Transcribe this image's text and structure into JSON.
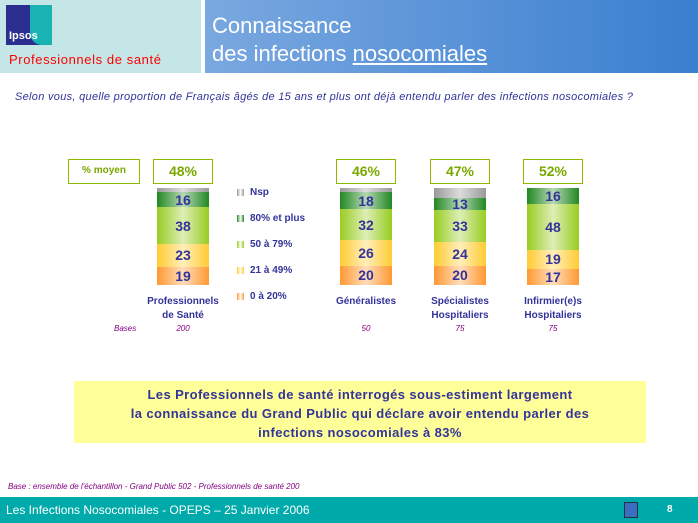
{
  "header": {
    "logo_text": "Ipsos",
    "subtitle": "Professionnels de santé",
    "title_line1": "Connaissance",
    "title_line2_a": "des infections ",
    "title_line2_b": "nosocomiales"
  },
  "question": "Selon vous, quelle proportion de Français âgés de 15 ans et plus ont déjà entendu parler des infections nosocomiales ?",
  "chart_data": {
    "type": "bar",
    "stacked": true,
    "avg_label": "% moyen",
    "categories": [
      "Professionnels de Santé",
      "Généralistes",
      "Spécialistes Hospitaliers",
      "Infirmier(e)s Hospitaliers"
    ],
    "category_lines": [
      [
        "Professionnels",
        "de Santé"
      ],
      [
        "Généralistes",
        ""
      ],
      [
        "Spécialistes",
        "Hospitaliers"
      ],
      [
        "Infirmier(e)s",
        "Hospitaliers"
      ]
    ],
    "averages": [
      "48%",
      "46%",
      "47%",
      "52%"
    ],
    "bases_label": "Bases",
    "bases": [
      "200",
      "50",
      "75",
      "75"
    ],
    "series": [
      {
        "name": "0 à 20%",
        "color": "#ff9933",
        "values": [
          19,
          20,
          20,
          17
        ]
      },
      {
        "name": "21 à 49%",
        "color": "#ffcc33",
        "values": [
          23,
          26,
          24,
          19
        ]
      },
      {
        "name": "50 à 79%",
        "color": "#99cc22",
        "values": [
          38,
          32,
          33,
          48
        ]
      },
      {
        "name": "80% et plus",
        "color": "#228822",
        "values": [
          16,
          18,
          13,
          16
        ]
      },
      {
        "name": "Nsp",
        "color": "#999999",
        "values": [
          4,
          4,
          10,
          0
        ]
      }
    ],
    "legend_order": [
      "Nsp",
      "80% et plus",
      "50 à 79%",
      "21 à 49%",
      "0 à 20%"
    ],
    "ylim": [
      0,
      100
    ]
  },
  "conclusion": [
    "Les Professionnels de santé interrogés sous-estiment largement",
    "la connaissance du Grand Public qui déclare avoir entendu parler des",
    "infections nosocomiales à 83%"
  ],
  "footnote": "Base : ensemble de l'échantillon - Grand Public 502 - Professionnels de santé 200",
  "footer": {
    "text": "Les Infections Nosocomiales - OPEPS – 25 Janvier 2006",
    "page": "8",
    "home_icon": "home-icon"
  }
}
